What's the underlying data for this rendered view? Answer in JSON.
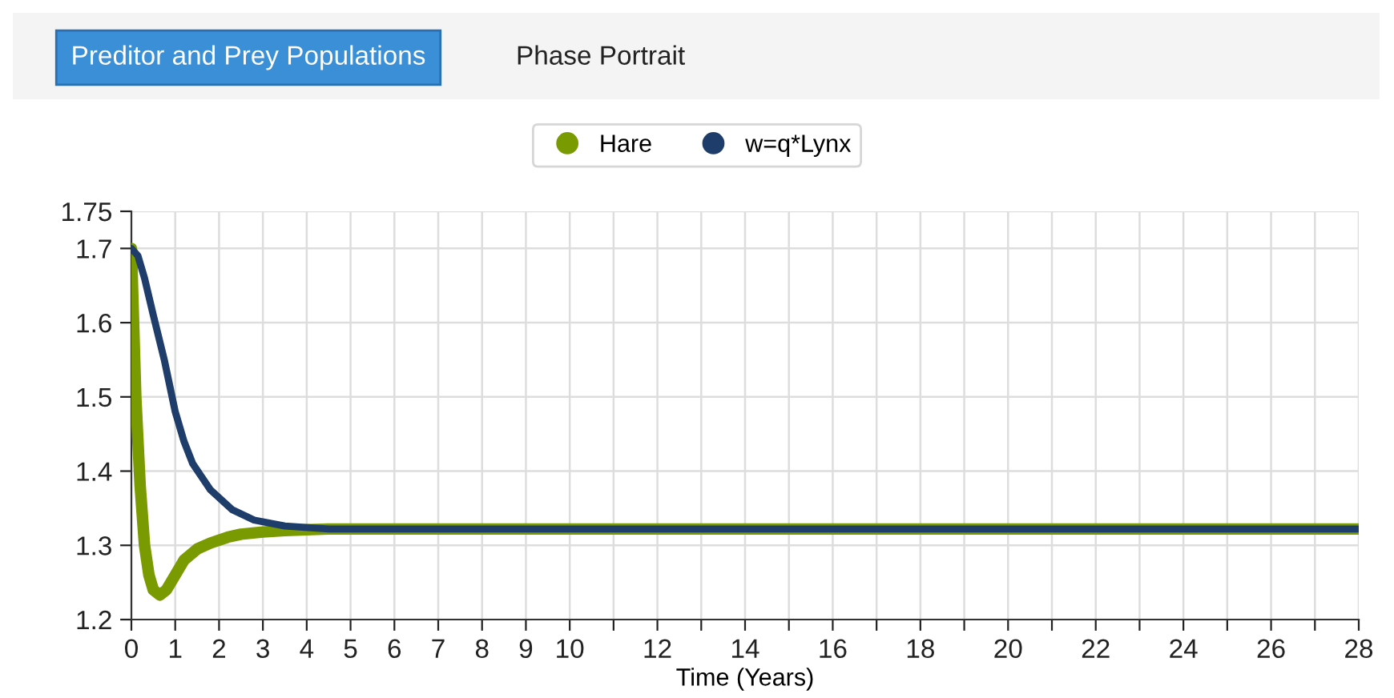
{
  "chart_data": {
    "type": "line",
    "xlabel": "Time (Years)",
    "annotations": [
      "Preditor and Prey Populations",
      "Phase Portrait"
    ],
    "series": [
      {
        "name": "Hare",
        "color": "#7a9a01",
        "x": [
          0,
          0.05,
          0.1,
          0.2,
          0.3,
          0.4,
          0.5,
          0.65,
          0.8,
          1.0,
          1.2,
          1.5,
          1.8,
          2.2,
          2.5,
          3.0,
          3.5,
          4.5,
          6,
          28
        ],
        "values": [
          1.7,
          1.6,
          1.5,
          1.38,
          1.3,
          1.26,
          1.24,
          1.233,
          1.24,
          1.26,
          1.28,
          1.295,
          1.303,
          1.311,
          1.315,
          1.318,
          1.32,
          1.322,
          1.322,
          1.322
        ]
      },
      {
        "name": "w=q*Lynx",
        "color": "#1f3d6b",
        "x": [
          0,
          0.15,
          0.3,
          0.5,
          0.75,
          1.0,
          1.2,
          1.4,
          1.8,
          2.3,
          2.8,
          3.5,
          4.5,
          6,
          28
        ],
        "values": [
          1.7,
          1.69,
          1.66,
          1.61,
          1.55,
          1.48,
          1.44,
          1.41,
          1.375,
          1.348,
          1.334,
          1.326,
          1.322,
          1.322,
          1.322
        ]
      }
    ],
    "xlim": [
      0,
      28
    ],
    "xticks": [
      0,
      1,
      2,
      3,
      4,
      5,
      6,
      7,
      8,
      9,
      10,
      {
        "value": 11,
        "label": null
      },
      12,
      {
        "value": 13,
        "label": null
      },
      14,
      {
        "value": 15,
        "label": null
      },
      16,
      {
        "value": 17,
        "label": null
      },
      18,
      {
        "value": 19,
        "label": null
      },
      20,
      {
        "value": 21,
        "label": null
      },
      22,
      {
        "value": 23,
        "label": null
      },
      24,
      {
        "value": 25,
        "label": null
      },
      26,
      {
        "value": 27,
        "label": null
      },
      28
    ],
    "ylim": [
      1.2,
      1.75
    ],
    "yticks": [
      1.2,
      1.3,
      1.4,
      1.5,
      1.6,
      1.7,
      1.75
    ],
    "grid": true,
    "legend": "top",
    "marker": "none",
    "line_style": "solid"
  }
}
